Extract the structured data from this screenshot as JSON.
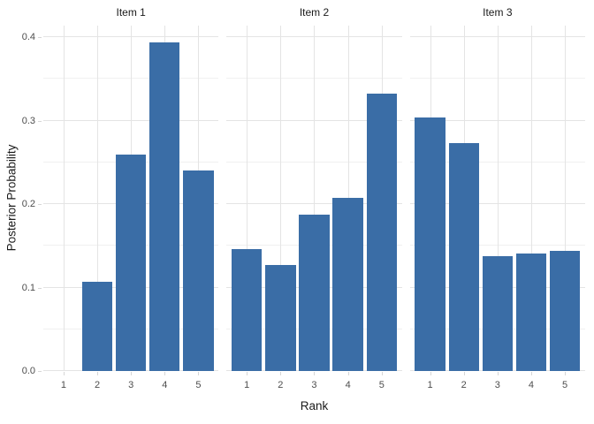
{
  "chart_data": {
    "type": "bar",
    "faceted": true,
    "title": "",
    "xlabel": "Rank",
    "ylabel": "Posterior Probability",
    "facet_titles": [
      "Item 1",
      "Item 2",
      "Item 3"
    ],
    "categories": [
      "1",
      "2",
      "3",
      "4",
      "5"
    ],
    "series": [
      {
        "name": "Item 1",
        "values": [
          0.0,
          0.107,
          0.259,
          0.394,
          0.24
        ]
      },
      {
        "name": "Item 2",
        "values": [
          0.146,
          0.127,
          0.187,
          0.208,
          0.332
        ]
      },
      {
        "name": "Item 3",
        "values": [
          0.304,
          0.273,
          0.138,
          0.141,
          0.144
        ]
      }
    ],
    "ylim": [
      0,
      0.414
    ],
    "yticks": [
      0.0,
      0.1,
      0.2,
      0.3,
      0.4
    ],
    "ytick_labels": [
      "0.0",
      "0.1",
      "0.2",
      "0.3",
      "0.4"
    ],
    "yminor": [
      0.05,
      0.15,
      0.25,
      0.35
    ],
    "grid": "on",
    "legend": "none",
    "bar_color": "#3a6da6",
    "grid_major_color": "#e4e4e4",
    "grid_minor_color": "#f0f0f0",
    "tick_color": "#d6d6d6",
    "tick_label_color": "#4d4d4d",
    "title_color": "#1a1a1a",
    "background_color": "#ffffff"
  }
}
